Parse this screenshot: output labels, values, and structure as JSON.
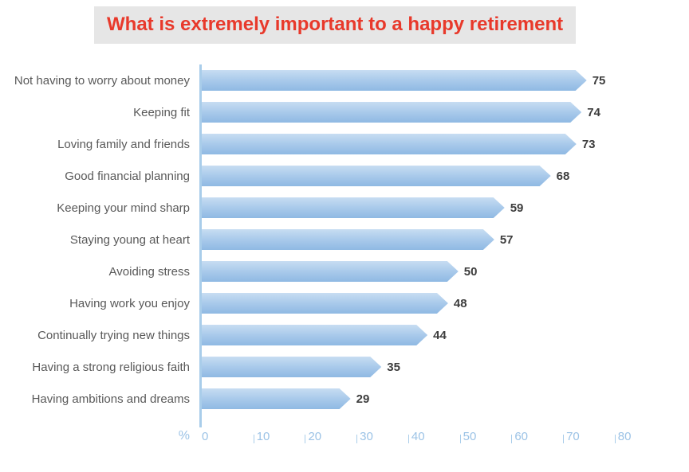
{
  "colors": {
    "title_color": "#e8392b",
    "title_bg": "#e6e6e6",
    "bar_top": "#c7ddf2",
    "bar_mid": "#a6c8ea",
    "bar_bottom": "#8fb9e3",
    "axis_color": "#a9cdea",
    "tick_text": "#9cc3e6",
    "label_color": "#595959",
    "value_color": "#3d3d3d"
  },
  "chart_data": {
    "type": "bar",
    "orientation": "horizontal",
    "title": "What is extremely important to a happy retirement",
    "categories": [
      "Not having to worry about money",
      "Keeping fit",
      "Loving family and friends",
      "Good financial planning",
      "Keeping your mind sharp",
      "Staying young at heart",
      "Avoiding stress",
      "Having work you enjoy",
      "Continually trying new things",
      "Having a strong religious faith",
      "Having ambitions and dreams"
    ],
    "values": [
      75,
      74,
      73,
      68,
      59,
      57,
      50,
      48,
      44,
      35,
      29
    ],
    "xlabel": "%",
    "xlim": [
      0,
      80
    ],
    "xticks": [
      0,
      10,
      20,
      30,
      40,
      50,
      60,
      70,
      80
    ],
    "grid": false,
    "legend": "none",
    "bar_style": "arrow-tip gradient blue",
    "value_labels": "end of bar, bold"
  }
}
